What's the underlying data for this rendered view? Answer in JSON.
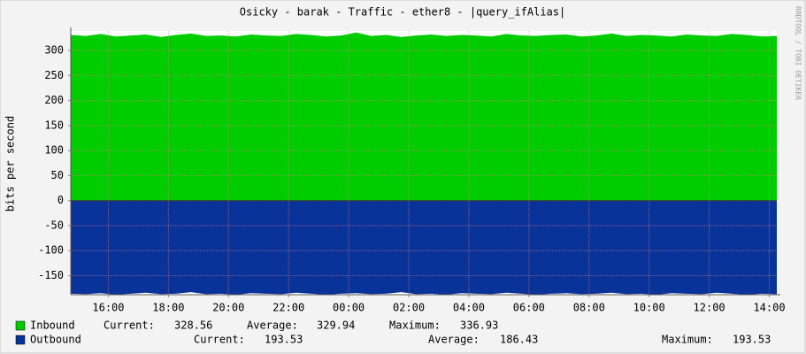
{
  "chart_data": {
    "type": "area",
    "title": "Osicky - barak - Traffic - ether8 - |query_ifAlias|",
    "y_label": "bits per second",
    "watermark": "RRDTOOL / TOBI OETIKER",
    "x": [
      14.75,
      15.25,
      15.75,
      16.25,
      16.75,
      17.25,
      17.75,
      18.25,
      18.75,
      19.25,
      19.75,
      20.25,
      20.75,
      21.25,
      21.75,
      22.25,
      22.75,
      23.25,
      23.75,
      24.25,
      24.75,
      25.25,
      25.75,
      26.25,
      26.75,
      27.25,
      27.75,
      28.25,
      28.75,
      29.25,
      29.75,
      30.25,
      30.75,
      31.25,
      31.75,
      32.25,
      32.75,
      33.25,
      33.75,
      34.25,
      34.75,
      35.25,
      35.75,
      36.25,
      36.75,
      37.25,
      37.75,
      38.25
    ],
    "xlim": [
      14.75,
      38.25
    ],
    "xticks": [
      {
        "value": 16,
        "label": "16:00"
      },
      {
        "value": 18,
        "label": "18:00"
      },
      {
        "value": 20,
        "label": "20:00"
      },
      {
        "value": 22,
        "label": "22:00"
      },
      {
        "value": 24,
        "label": "00:00"
      },
      {
        "value": 26,
        "label": "02:00"
      },
      {
        "value": 28,
        "label": "04:00"
      },
      {
        "value": 30,
        "label": "06:00"
      },
      {
        "value": 32,
        "label": "08:00"
      },
      {
        "value": 34,
        "label": "10:00"
      },
      {
        "value": 36,
        "label": "12:00"
      },
      {
        "value": 38,
        "label": "14:00"
      }
    ],
    "ylim": [
      -188,
      339
    ],
    "yticks": [
      -150,
      -100,
      -50,
      0,
      50,
      100,
      150,
      200,
      250,
      300
    ],
    "grid": true,
    "series": [
      {
        "name": "Inbound",
        "color": "#00cc00",
        "values": [
          331,
          329,
          333,
          328,
          330,
          332,
          327,
          331,
          334,
          329,
          330,
          328,
          332,
          330,
          329,
          333,
          331,
          328,
          330,
          336,
          329,
          331,
          327,
          330,
          332,
          329,
          331,
          330,
          328,
          333,
          330,
          329,
          331,
          332,
          328,
          330,
          334,
          329,
          331,
          330,
          328,
          332,
          330,
          329,
          333,
          331,
          328,
          329
        ]
      },
      {
        "name": "Outbound",
        "color": "#0a3399",
        "values": [
          -186,
          -187,
          -185,
          -188,
          -186,
          -184,
          -187,
          -186,
          -183,
          -187,
          -186,
          -188,
          -185,
          -186,
          -187,
          -184,
          -186,
          -188,
          -186,
          -185,
          -187,
          -186,
          -183,
          -187,
          -186,
          -188,
          -185,
          -186,
          -187,
          -184,
          -186,
          -188,
          -186,
          -185,
          -187,
          -186,
          -184,
          -187,
          -186,
          -188,
          -185,
          -186,
          -187,
          -184,
          -186,
          -188,
          -186,
          -187
        ]
      }
    ],
    "stat_labels": {
      "current": "Current:",
      "average": "Average:",
      "maximum": "Maximum:"
    },
    "stats": [
      {
        "current": 328.56,
        "average": 329.94,
        "maximum": 336.93
      },
      {
        "current": 193.53,
        "average": 186.43,
        "maximum": 193.53
      }
    ]
  }
}
